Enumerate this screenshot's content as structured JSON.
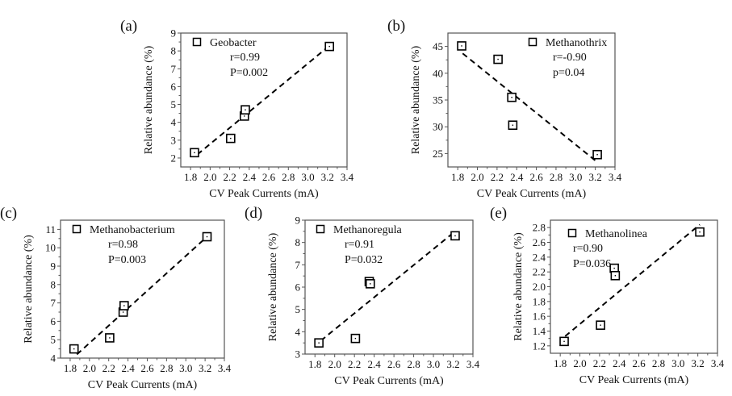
{
  "chart_data": [
    {
      "type": "scatter",
      "panel_label": "(a)",
      "series_name": "Geobacter",
      "stats": [
        "r=0.99",
        "P=0.002"
      ],
      "xlabel": "CV Peak Currents (mA)",
      "ylabel": "Relative abundance (%)",
      "xlim": [
        1.7,
        3.4
      ],
      "ylim": [
        1.5,
        9
      ],
      "xticks": [
        1.8,
        2.0,
        2.2,
        2.4,
        2.6,
        2.8,
        3.0,
        3.2,
        3.4
      ],
      "yticks": [
        2,
        3,
        4,
        5,
        6,
        7,
        8,
        9
      ],
      "x": [
        1.84,
        2.21,
        2.35,
        2.36,
        3.22
      ],
      "y": [
        2.3,
        3.1,
        4.35,
        4.7,
        8.25
      ],
      "fit_line": {
        "x": [
          1.87,
          3.2
        ],
        "y": [
          2.2,
          8.2
        ]
      },
      "legend": "top-left"
    },
    {
      "type": "scatter",
      "panel_label": "(b)",
      "series_name": "Methanothrix",
      "stats": [
        "r=-0.90",
        "p=0.04"
      ],
      "xlabel": "CV Peak Currents (mA)",
      "ylabel": "Relative abundance (%)",
      "xlim": [
        1.7,
        3.4
      ],
      "ylim": [
        22.5,
        47.5
      ],
      "xticks": [
        1.8,
        2.0,
        2.2,
        2.4,
        2.6,
        2.8,
        3.0,
        3.2,
        3.4
      ],
      "yticks": [
        25,
        30,
        35,
        40,
        45
      ],
      "x": [
        1.84,
        2.21,
        2.35,
        2.36,
        3.22
      ],
      "y": [
        45.1,
        42.6,
        35.5,
        30.3,
        24.8
      ],
      "fit_line": {
        "x": [
          1.85,
          3.22
        ],
        "y": [
          43.7,
          23.4
        ]
      },
      "legend": "top-right"
    },
    {
      "type": "scatter",
      "panel_label": "(c)",
      "series_name": "Methanobacterium",
      "stats": [
        "r=0.98",
        "P=0.003"
      ],
      "xlabel": "CV Peak Currents (mA)",
      "ylabel": "Relative abundance (%)",
      "xlim": [
        1.7,
        3.4
      ],
      "ylim": [
        4,
        11.5
      ],
      "xticks": [
        1.8,
        2.0,
        2.2,
        2.4,
        2.6,
        2.8,
        3.0,
        3.2,
        3.4
      ],
      "yticks": [
        4,
        5,
        6,
        7,
        8,
        9,
        10,
        11
      ],
      "x": [
        1.84,
        2.21,
        2.35,
        2.36,
        3.22
      ],
      "y": [
        4.5,
        5.1,
        6.5,
        6.85,
        10.6
      ],
      "fit_line": {
        "x": [
          1.87,
          3.22
        ],
        "y": [
          4.2,
          10.6
        ]
      },
      "legend": "top-left"
    },
    {
      "type": "scatter",
      "panel_label": "(d)",
      "series_name": "Methanoregula",
      "stats": [
        "r=0.91",
        "P=0.032"
      ],
      "xlabel": "CV Peak Currents (mA)",
      "ylabel": "Relative abundance (%)",
      "xlim": [
        1.7,
        3.4
      ],
      "ylim": [
        3,
        9
      ],
      "xticks": [
        1.8,
        2.0,
        2.2,
        2.4,
        2.6,
        2.8,
        3.0,
        3.2,
        3.4
      ],
      "yticks": [
        3,
        4,
        5,
        6,
        7,
        8,
        9
      ],
      "x": [
        1.84,
        2.21,
        2.35,
        2.36,
        3.22
      ],
      "y": [
        3.5,
        3.7,
        6.25,
        6.15,
        8.3
      ],
      "fit_line": {
        "x": [
          1.86,
          3.22
        ],
        "y": [
          3.6,
          8.5
        ]
      },
      "legend": "top-left"
    },
    {
      "type": "scatter",
      "panel_label": "(e)",
      "series_name": "Methanolinea",
      "stats": [
        "r=0.90",
        "P=0.036"
      ],
      "xlabel": "CV Peak Currents (mA)",
      "ylabel": "Relative abundance (%)",
      "xlim": [
        1.7,
        3.4
      ],
      "ylim": [
        1.1,
        2.9
      ],
      "xticks": [
        1.8,
        2.0,
        2.2,
        2.4,
        2.6,
        2.8,
        3.0,
        3.2,
        3.4
      ],
      "yticks": [
        1.2,
        1.4,
        1.6,
        1.8,
        2.0,
        2.2,
        2.4,
        2.6,
        2.8
      ],
      "x": [
        1.84,
        2.21,
        2.35,
        2.36,
        3.22
      ],
      "y": [
        1.26,
        1.48,
        2.25,
        2.15,
        2.74
      ],
      "fit_line": {
        "x": [
          1.85,
          3.22
        ],
        "y": [
          1.33,
          2.84
        ]
      },
      "legend": "top-left"
    }
  ]
}
